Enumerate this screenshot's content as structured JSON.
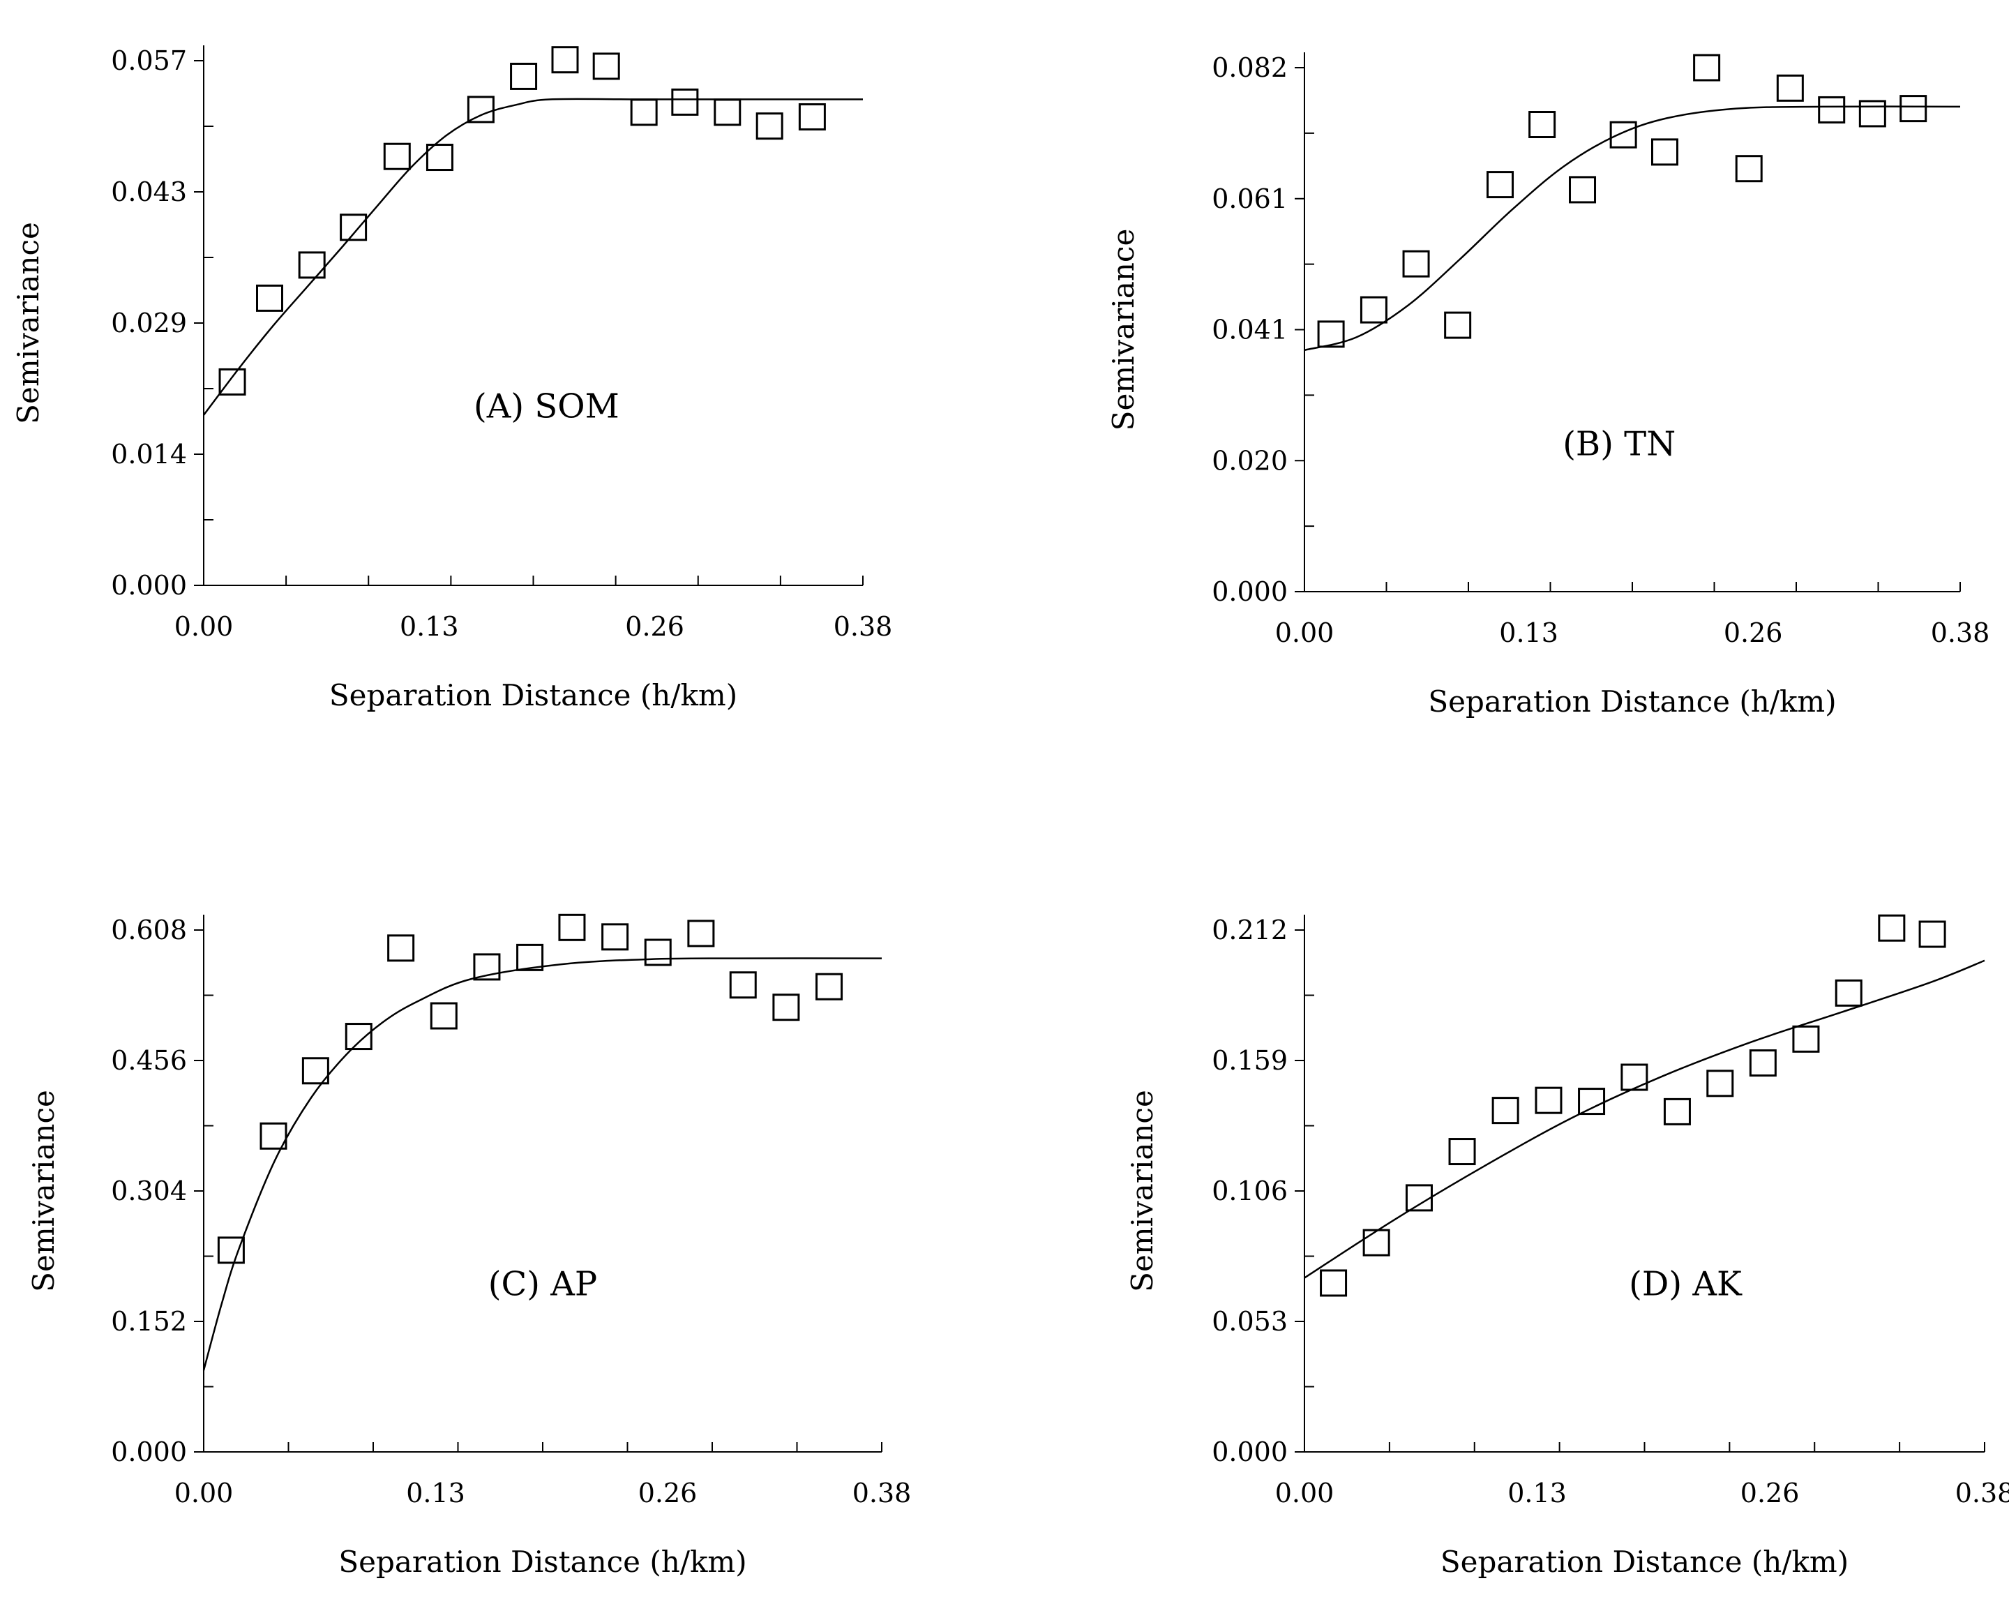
{
  "figure": {
    "line_color": "#000000",
    "background_color": "#ffffff"
  },
  "chart_data": [
    {
      "type": "scatter",
      "title": "(A) SOM",
      "xlabel": "Separation Distance (h/km)",
      "ylabel": "Semivariance",
      "xlim": [
        0,
        0.38
      ],
      "ylim": [
        0,
        0.057
      ],
      "x_ticks": [
        "0.00",
        "0.13",
        "0.26",
        "0.38"
      ],
      "y_ticks": [
        "0.000",
        "0.014",
        "0.029",
        "0.043",
        "0.057"
      ],
      "points": {
        "x": [
          0.0165,
          0.038,
          0.0624,
          0.0863,
          0.1115,
          0.1361,
          0.1598,
          0.1844,
          0.2083,
          0.2321,
          0.2538,
          0.2774,
          0.3019,
          0.3262,
          0.3508
        ],
        "y": [
          0.0221,
          0.0312,
          0.0348,
          0.0389,
          0.0466,
          0.0465,
          0.0517,
          0.0553,
          0.0571,
          0.0564,
          0.0514,
          0.0525,
          0.0514,
          0.0499,
          0.0509
        ]
      },
      "model_curve": {
        "x": [
          0.0,
          0.02,
          0.04,
          0.06,
          0.08,
          0.1,
          0.12,
          0.14,
          0.16,
          0.18,
          0.2,
          0.25,
          0.3,
          0.38
        ],
        "y": [
          0.0185,
          0.0235,
          0.0282,
          0.0325,
          0.0368,
          0.0412,
          0.0455,
          0.0489,
          0.0511,
          0.0522,
          0.0528,
          0.0528,
          0.0528,
          0.0528
        ]
      }
    },
    {
      "type": "scatter",
      "title": "(B) TN",
      "xlabel": "Separation Distance (h/km)",
      "ylabel": "Semivariance",
      "xlim": [
        0,
        0.38
      ],
      "ylim": [
        0,
        0.082
      ],
      "x_ticks": [
        "0.00",
        "0.13",
        "0.26",
        "0.38"
      ],
      "y_ticks": [
        "0.000",
        "0.020",
        "0.041",
        "0.061",
        "0.082"
      ],
      "points": {
        "x": [
          0.0154,
          0.0402,
          0.0647,
          0.0888,
          0.1134,
          0.1377,
          0.1611,
          0.1848,
          0.2088,
          0.2331,
          0.2576,
          0.2815,
          0.3055,
          0.3292,
          0.3528
        ],
        "y": [
          0.0403,
          0.0441,
          0.0513,
          0.0417,
          0.0637,
          0.0731,
          0.0629,
          0.0715,
          0.0688,
          0.082,
          0.0662,
          0.0788,
          0.0754,
          0.0748,
          0.0756
        ]
      },
      "model_curve": {
        "x": [
          0.0,
          0.03,
          0.06,
          0.09,
          0.12,
          0.15,
          0.18,
          0.21,
          0.25,
          0.3,
          0.38
        ],
        "y": [
          0.0378,
          0.0398,
          0.0448,
          0.052,
          0.0597,
          0.0665,
          0.0713,
          0.0741,
          0.0756,
          0.0759,
          0.0759
        ]
      }
    },
    {
      "type": "scatter",
      "title": "(C) AP",
      "xlabel": "Separation Distance (h/km)",
      "ylabel": "Semivariance",
      "xlim": [
        0,
        0.38
      ],
      "ylim": [
        0,
        0.608
      ],
      "x_ticks": [
        "0.00",
        "0.13",
        "0.26",
        "0.38"
      ],
      "y_ticks": [
        "0.000",
        "0.152",
        "0.304",
        "0.456",
        "0.608"
      ],
      "points": {
        "x": [
          0.0154,
          0.0391,
          0.0627,
          0.0869,
          0.1105,
          0.1346,
          0.1587,
          0.1828,
          0.2064,
          0.2305,
          0.2546,
          0.2787,
          0.3023,
          0.3264,
          0.3505
        ],
        "y": [
          0.235,
          0.368,
          0.444,
          0.484,
          0.587,
          0.508,
          0.565,
          0.576,
          0.611,
          0.6,
          0.582,
          0.604,
          0.544,
          0.518,
          0.542
        ]
      },
      "model_curve": {
        "x": [
          0.0,
          0.01,
          0.02,
          0.04,
          0.06,
          0.08,
          0.1,
          0.12,
          0.15,
          0.2,
          0.25,
          0.3,
          0.38
        ],
        "y": [
          0.095,
          0.172,
          0.238,
          0.34,
          0.412,
          0.463,
          0.5,
          0.525,
          0.551,
          0.568,
          0.574,
          0.575,
          0.575
        ]
      }
    },
    {
      "type": "scatter",
      "title": "(D) AK",
      "xlabel": "Separation Distance (h/km)",
      "ylabel": "Semivariance",
      "xlim": [
        0,
        0.38
      ],
      "ylim": [
        0,
        0.212
      ],
      "x_ticks": [
        "0.00",
        "0.13",
        "0.26",
        "0.38"
      ],
      "y_ticks": [
        "0.000",
        "0.053",
        "0.106",
        "0.159",
        "0.212"
      ],
      "points": {
        "x": [
          0.0162,
          0.0402,
          0.0641,
          0.0881,
          0.1123,
          0.1364,
          0.1604,
          0.1843,
          0.2083,
          0.2322,
          0.2562,
          0.2802,
          0.3041,
          0.3281,
          0.3508
        ],
        "y": [
          0.0686,
          0.085,
          0.1032,
          0.122,
          0.1387,
          0.1428,
          0.1424,
          0.1522,
          0.1382,
          0.1497,
          0.158,
          0.1677,
          0.1864,
          0.2128,
          0.2103
        ]
      },
      "model_curve": {
        "x": [
          0.0,
          0.05,
          0.1,
          0.15,
          0.2,
          0.25,
          0.3,
          0.35,
          0.38
        ],
        "y": [
          0.0707,
          0.0942,
          0.1159,
          0.1359,
          0.1526,
          0.1666,
          0.1786,
          0.1908,
          0.1996
        ]
      }
    }
  ]
}
